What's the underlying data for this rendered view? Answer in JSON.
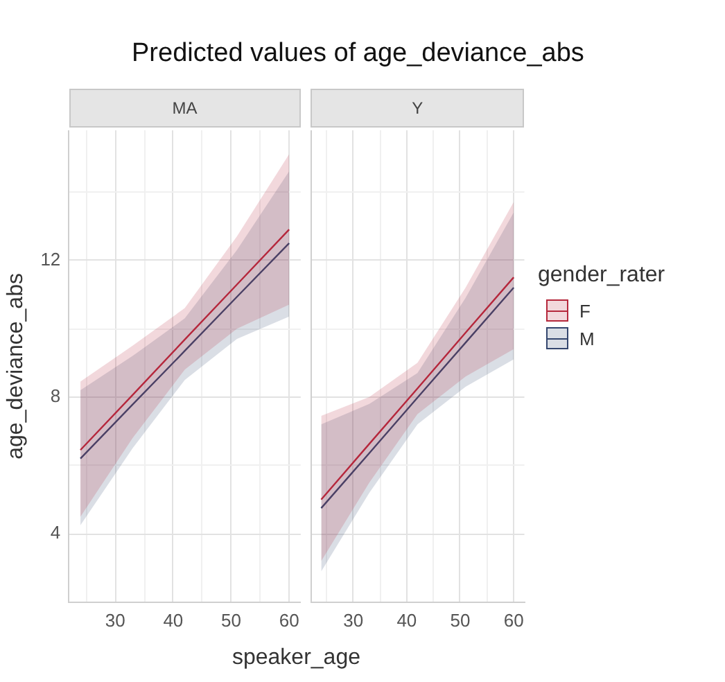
{
  "chart_data": [
    {
      "type": "line",
      "title": "Predicted values of age_deviance_abs",
      "subtitle": "MA",
      "xlabel": "speaker_age",
      "ylabel": "age_deviance_abs",
      "x": [
        24,
        33,
        42,
        51,
        60
      ],
      "xlim": [
        22,
        62
      ],
      "xticks": [
        {
          "value": 25,
          "label": null
        },
        30,
        {
          "value": 35,
          "label": null
        },
        40,
        {
          "value": 45,
          "label": null
        },
        50,
        {
          "value": 55,
          "label": null
        },
        60
      ],
      "ylim": [
        2,
        15.8
      ],
      "yticks": [
        4,
        {
          "value": 6,
          "label": null
        },
        8,
        {
          "value": 10,
          "label": null
        },
        12,
        {
          "value": 14,
          "label": null
        }
      ],
      "grid": true,
      "legend": "right",
      "legend_title": "gender_rater",
      "series": [
        {
          "name": "F",
          "color": "#b5283c",
          "values": [
            6.45,
            8.06,
            9.68,
            11.29,
            12.9
          ],
          "lower": [
            4.5,
            6.8,
            8.8,
            10.0,
            10.7
          ],
          "upper": [
            8.45,
            9.5,
            10.6,
            12.7,
            15.1
          ]
        },
        {
          "name": "M",
          "color": "#34466e",
          "values": [
            6.2,
            7.78,
            9.35,
            10.93,
            12.5
          ],
          "lower": [
            4.25,
            6.5,
            8.5,
            9.7,
            10.35
          ],
          "upper": [
            8.2,
            9.2,
            10.3,
            12.3,
            14.6
          ]
        }
      ]
    },
    {
      "type": "line",
      "subtitle": "Y",
      "x": [
        24,
        33,
        42,
        51,
        60
      ],
      "xlim": [
        22,
        62
      ],
      "xticks": [
        {
          "value": 25,
          "label": null
        },
        30,
        {
          "value": 35,
          "label": null
        },
        40,
        {
          "value": 45,
          "label": null
        },
        50,
        {
          "value": 55,
          "label": null
        },
        60
      ],
      "ylim": [
        2,
        15.8
      ],
      "yticks": [
        4,
        {
          "value": 6,
          "label": null
        },
        8,
        {
          "value": 10,
          "label": null
        },
        12,
        {
          "value": 14,
          "label": null
        }
      ],
      "tick_labels": "x",
      "grid": true,
      "series": [
        {
          "color": "#b5283c",
          "values": [
            5.0,
            6.63,
            8.25,
            9.88,
            11.5
          ],
          "lower": [
            3.2,
            5.5,
            7.5,
            8.6,
            9.4
          ],
          "upper": [
            7.45,
            8.0,
            9.0,
            11.2,
            13.7
          ]
        },
        {
          "color": "#34466e",
          "values": [
            4.75,
            6.36,
            7.98,
            9.59,
            11.2
          ],
          "lower": [
            2.9,
            5.2,
            7.2,
            8.3,
            9.1
          ],
          "upper": [
            7.2,
            7.8,
            8.7,
            10.9,
            13.4
          ]
        }
      ]
    }
  ]
}
